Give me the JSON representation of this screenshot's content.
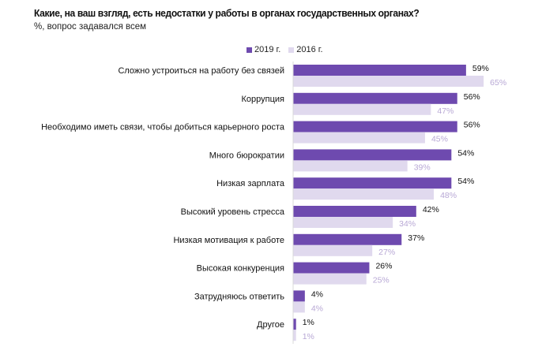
{
  "chart_data": {
    "type": "bar",
    "orientation": "horizontal",
    "title": "Какие, на ваш взгляд, есть недостатки у работы в органах государственных органах?",
    "subtitle": "%, вопрос задавался всем",
    "categories": [
      "Сложно устроиться на работу без связей",
      "Коррупция",
      "Необходимо иметь связи, чтобы добиться карьерного роста",
      "Много бюрократии",
      "Низкая зарплата",
      "Высокий уровень стресса",
      "Низкая мотивация к работе",
      "Высокая конкуренция",
      "Затрудняюсь ответить",
      "Другое"
    ],
    "series": [
      {
        "name": "2019 г.",
        "color": "#6e4aaf",
        "label_color": "#111111",
        "values": [
          59,
          56,
          56,
          54,
          54,
          42,
          37,
          26,
          4,
          1
        ]
      },
      {
        "name": "2016 г.",
        "color": "#e0d9ee",
        "label_color": "#b8a8d5",
        "values": [
          65,
          47,
          45,
          39,
          48,
          34,
          27,
          25,
          4,
          1
        ]
      }
    ],
    "value_suffix": "%",
    "xlim": [
      0,
      70
    ],
    "grid": false,
    "legend_position": "top"
  }
}
